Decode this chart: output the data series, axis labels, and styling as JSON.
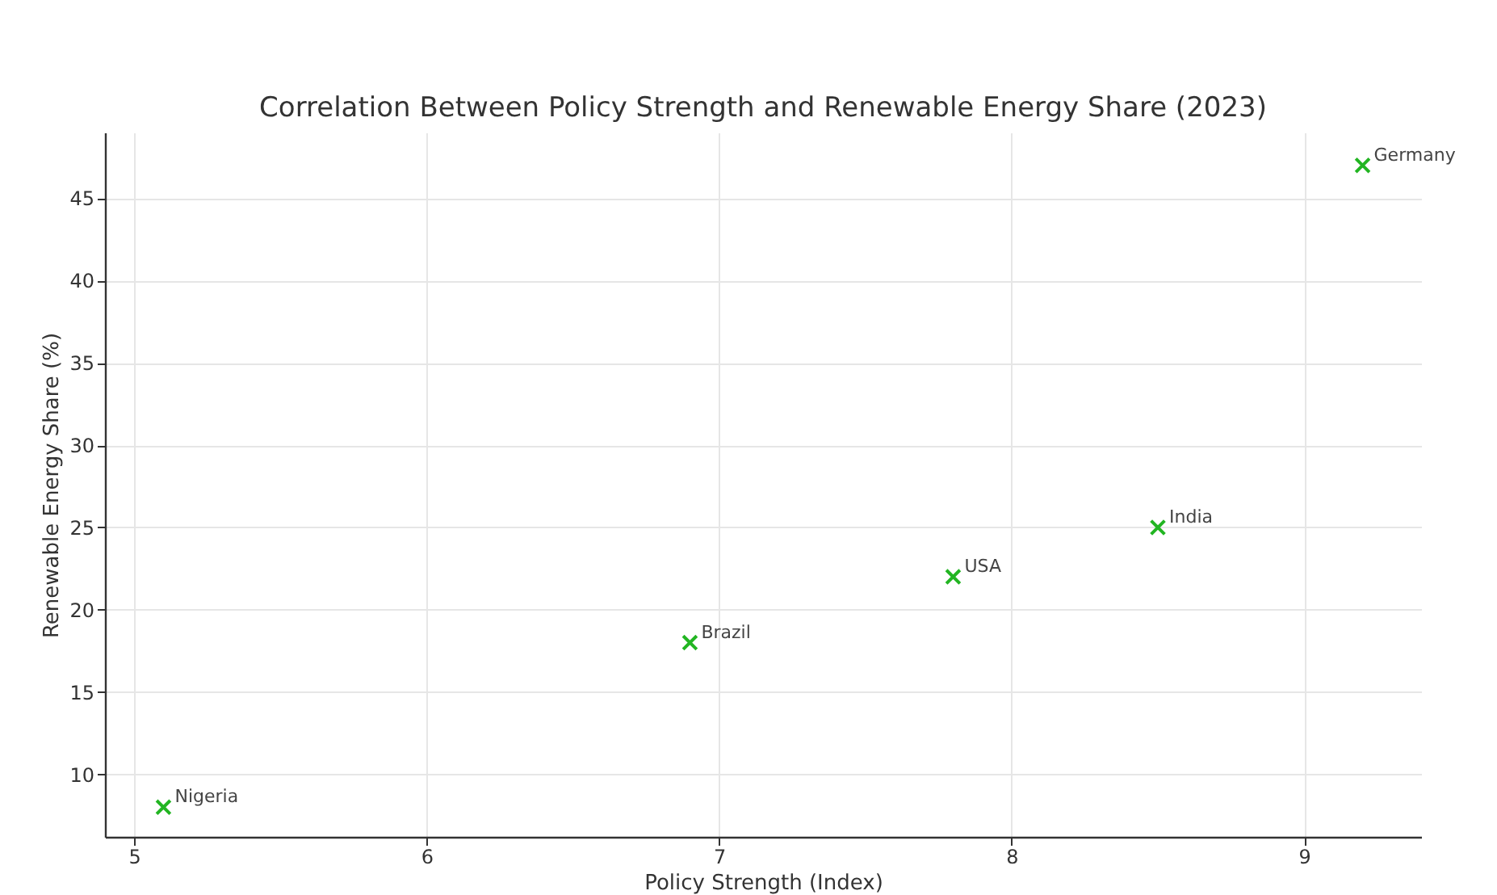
{
  "chart_data": {
    "type": "scatter",
    "title": "Correlation Between Policy Strength and Renewable Energy Share (2023)",
    "xlabel": "Policy Strength (Index)",
    "ylabel": "Renewable Energy Share (%)",
    "x": [
      5.1,
      6.9,
      7.8,
      8.5,
      9.2
    ],
    "series": [
      {
        "color": "#22b522",
        "values": [
          8,
          18,
          22,
          25,
          47
        ]
      }
    ],
    "annotations": [
      {
        "text": "Nigeria",
        "x": 5.1,
        "y": 8
      },
      {
        "text": "Brazil",
        "x": 6.9,
        "y": 18
      },
      {
        "text": "USA",
        "x": 7.8,
        "y": 22
      },
      {
        "text": "India",
        "x": 8.5,
        "y": 25
      },
      {
        "text": "Germany",
        "x": 9.2,
        "y": 47
      }
    ],
    "xlim": [
      4.9,
      9.4
    ],
    "xticks": [
      5,
      6,
      7,
      8,
      9
    ],
    "ylim": [
      6.2,
      49
    ],
    "yticks": [
      10,
      15,
      20,
      25,
      30,
      35,
      40,
      45
    ],
    "grid": true,
    "marker": "cross"
  }
}
